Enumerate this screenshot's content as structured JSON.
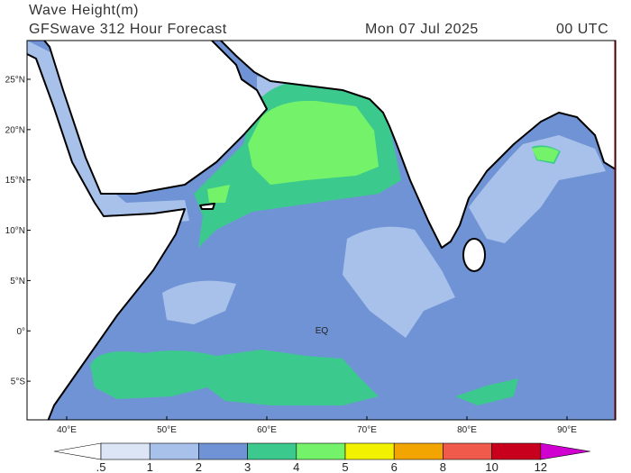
{
  "header": {
    "title": "Wave Height(m)",
    "subtitle": "GFSwave 312 Hour Forecast",
    "date": "Mon 07 Jul 2025",
    "time": "00 UTC"
  },
  "map": {
    "lat_labels": [
      "25°N",
      "20°N",
      "15°N",
      "10°N",
      "5°N",
      "0°",
      "5°S"
    ],
    "lon_labels": [
      "40°E",
      "50°E",
      "60°E",
      "70°E",
      "80°E",
      "90°E"
    ],
    "annotation": "EQ"
  },
  "colorbar": {
    "labels": [
      ".5",
      "1",
      "2",
      "3",
      "4",
      "5",
      "6",
      "8",
      "10",
      "12"
    ],
    "colors": [
      "#ffffff",
      "#dbe5f5",
      "#a8c1ea",
      "#6f93d5",
      "#3cc98e",
      "#74f26a",
      "#f2f200",
      "#f2a400",
      "#f05a4a",
      "#c8001e",
      "#d000d0"
    ]
  }
}
